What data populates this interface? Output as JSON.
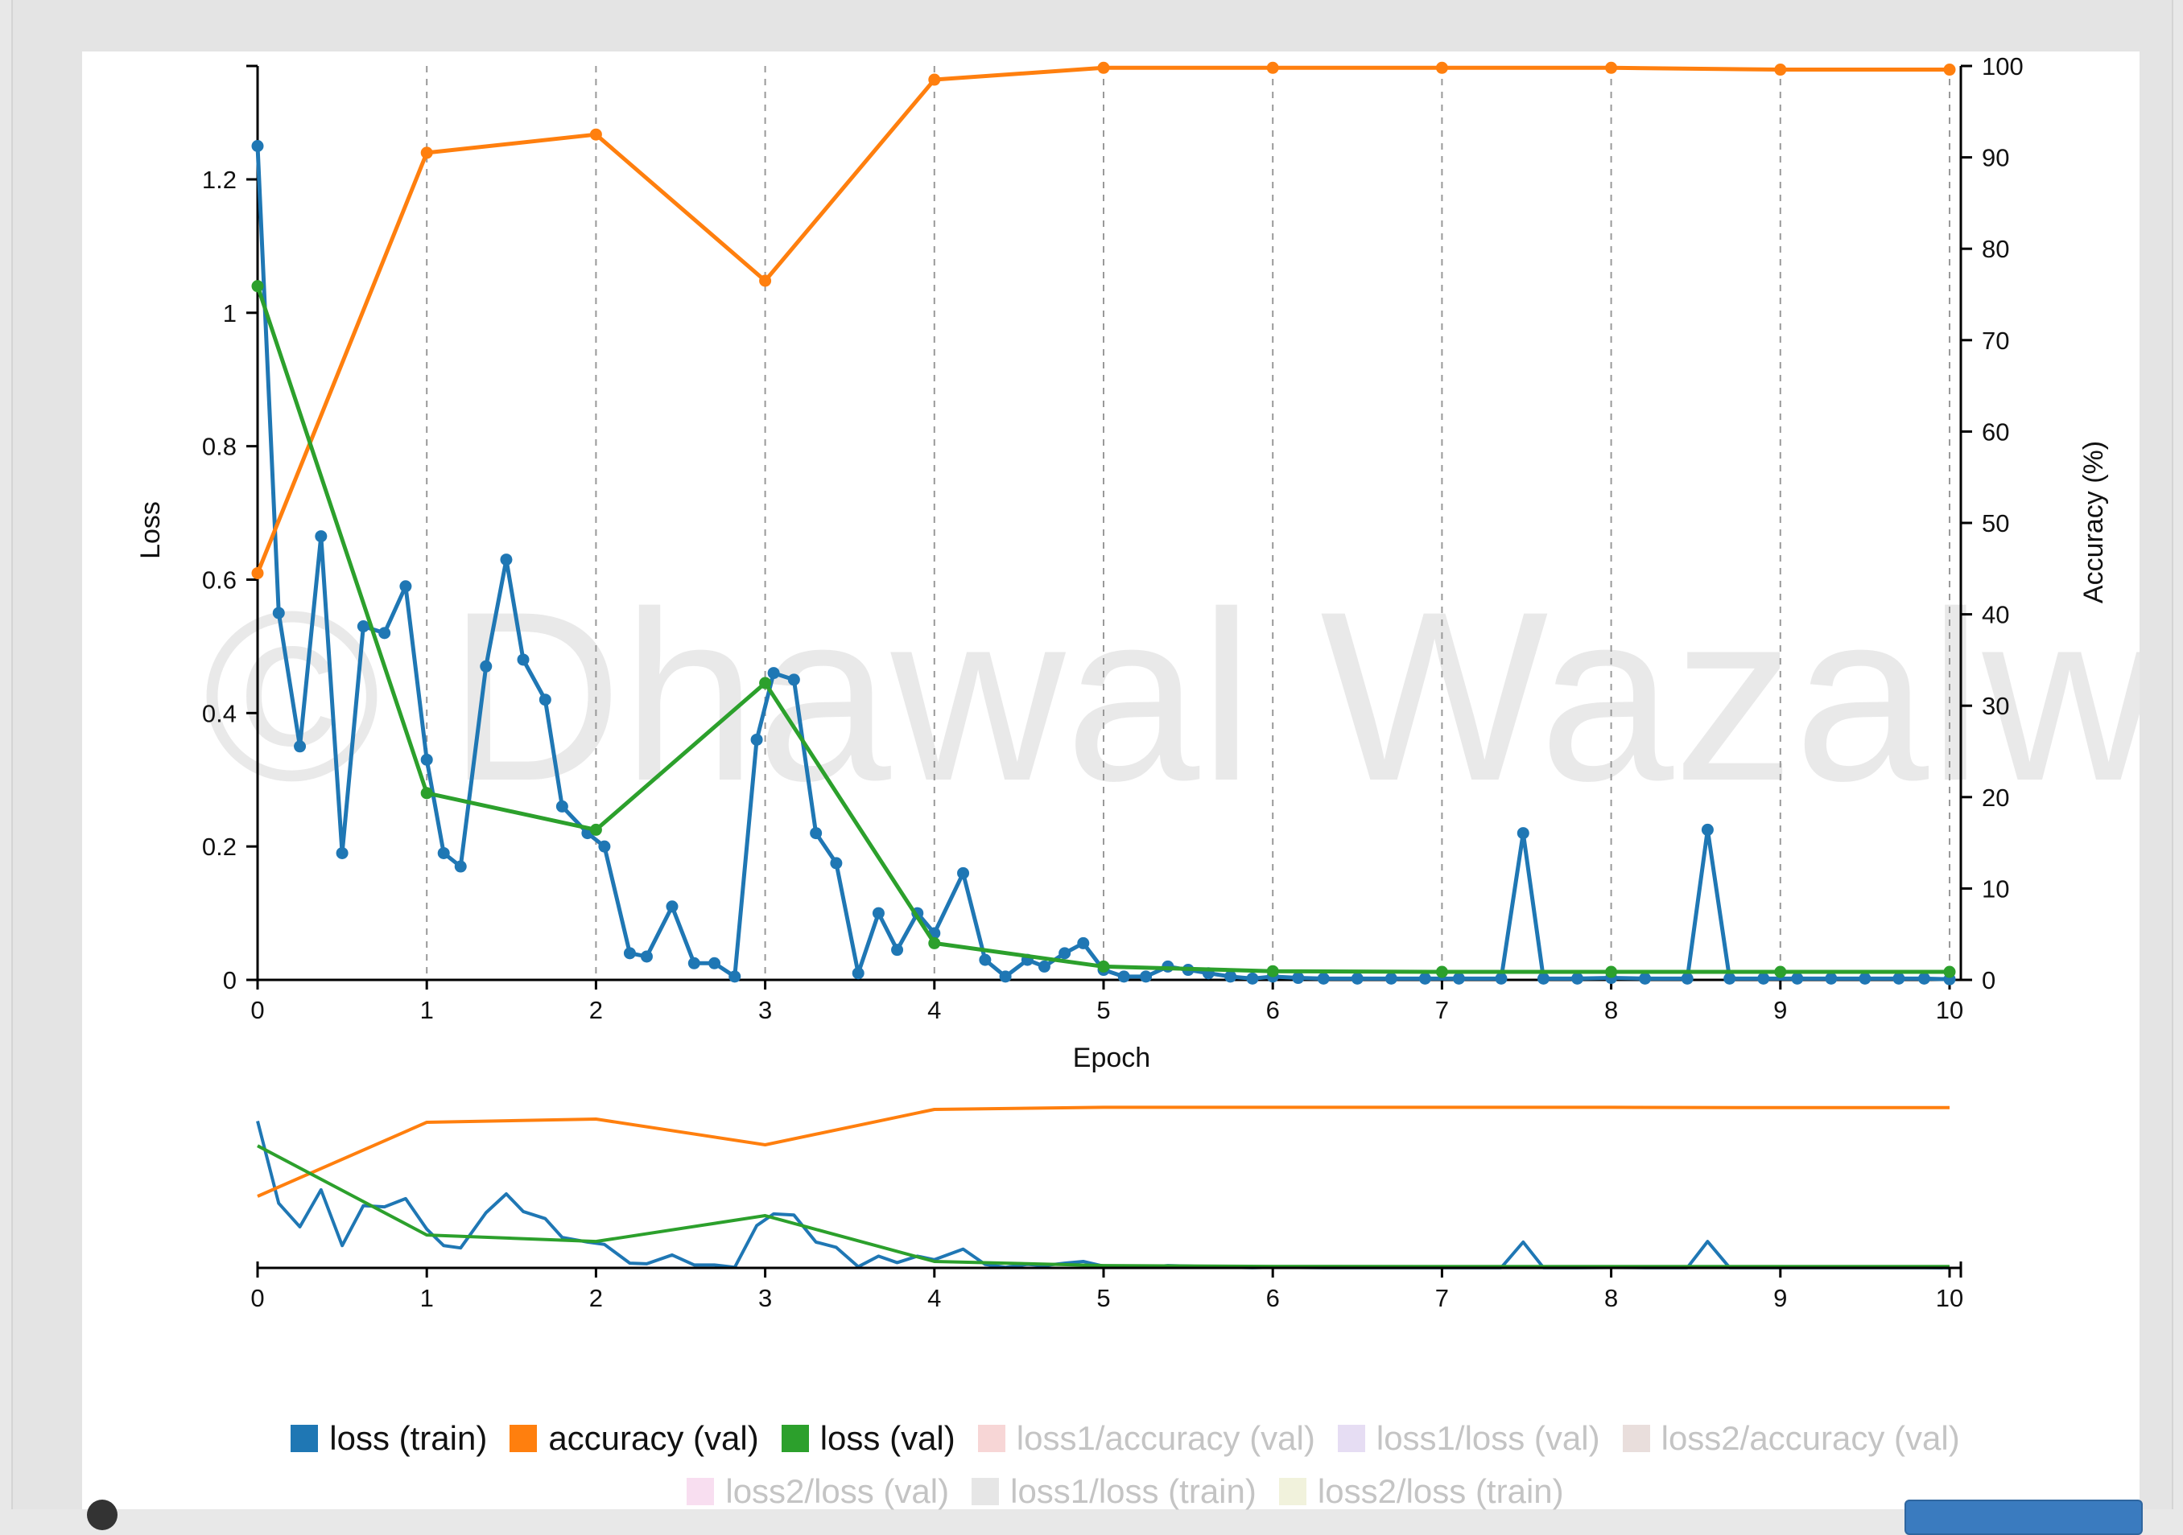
{
  "watermark": "© Dhawal Wazalwar",
  "chart_data": {
    "type": "line",
    "xlabel": "Epoch",
    "ylabel_left": "Loss",
    "ylabel_right": "Accuracy (%)",
    "xlim": [
      0,
      10
    ],
    "ylim_left": [
      0,
      1.37
    ],
    "ylim_right": [
      0,
      100
    ],
    "x_ticks": [
      "0",
      "1",
      "2",
      "3",
      "4",
      "5",
      "6",
      "7",
      "8",
      "9",
      "10"
    ],
    "y_left_ticks": [
      {
        "v": 0,
        "label": "0"
      },
      {
        "v": 0.2,
        "label": "0.2"
      },
      {
        "v": 0.4,
        "label": "0.4"
      },
      {
        "v": 0.6,
        "label": "0.6"
      },
      {
        "v": 0.8,
        "label": "0.8"
      },
      {
        "v": 1,
        "label": "1"
      },
      {
        "v": 1.2,
        "label": "1.2"
      }
    ],
    "y_right_ticks": [
      "0",
      "10",
      "20",
      "30",
      "40",
      "50",
      "60",
      "70",
      "80",
      "90",
      "100"
    ],
    "grid": "vertical dashed at each epoch",
    "series": [
      {
        "name": "loss (train)",
        "color": "#1f77b4",
        "axis": "left",
        "x": [
          0,
          0.125,
          0.25,
          0.375,
          0.5,
          0.625,
          0.75,
          0.875,
          1,
          1.1,
          1.2,
          1.35,
          1.47,
          1.57,
          1.7,
          1.8,
          1.95,
          2.05,
          2.2,
          2.3,
          2.45,
          2.58,
          2.7,
          2.82,
          2.95,
          3.05,
          3.17,
          3.3,
          3.42,
          3.55,
          3.67,
          3.78,
          3.9,
          4.0,
          4.17,
          4.3,
          4.42,
          4.55,
          4.65,
          4.77,
          4.88,
          5.0,
          5.12,
          5.25,
          5.38,
          5.5,
          5.62,
          5.75,
          5.88,
          6.0,
          6.15,
          6.3,
          6.5,
          6.7,
          6.9,
          7.1,
          7.35,
          7.48,
          7.6,
          7.8,
          8.0,
          8.2,
          8.45,
          8.57,
          8.7,
          8.9,
          9.1,
          9.3,
          9.5,
          9.7,
          9.85,
          10
        ],
        "values": [
          1.25,
          0.55,
          0.35,
          0.665,
          0.19,
          0.53,
          0.52,
          0.59,
          0.33,
          0.19,
          0.17,
          0.47,
          0.63,
          0.48,
          0.42,
          0.26,
          0.22,
          0.2,
          0.04,
          0.035,
          0.11,
          0.025,
          0.025,
          0.005,
          0.36,
          0.46,
          0.45,
          0.22,
          0.175,
          0.01,
          0.1,
          0.045,
          0.1,
          0.07,
          0.16,
          0.03,
          0.005,
          0.03,
          0.02,
          0.04,
          0.055,
          0.015,
          0.005,
          0.005,
          0.02,
          0.015,
          0.01,
          0.005,
          0.002,
          0.005,
          0.003,
          0.002,
          0.002,
          0.002,
          0.002,
          0.002,
          0.002,
          0.22,
          0.002,
          0.002,
          0.003,
          0.002,
          0.002,
          0.225,
          0.002,
          0.002,
          0.002,
          0.002,
          0.002,
          0.002,
          0.002,
          0.001
        ]
      },
      {
        "name": "accuracy (val)",
        "color": "#ff7f0e",
        "axis": "right",
        "x": [
          0,
          1,
          2,
          3,
          4,
          5,
          6,
          7,
          8,
          9,
          10
        ],
        "values": [
          44.5,
          90.5,
          92.5,
          76.5,
          98.5,
          99.8,
          99.8,
          99.8,
          99.8,
          99.6,
          99.6
        ]
      },
      {
        "name": "loss (val)",
        "color": "#2ca02c",
        "axis": "left",
        "x": [
          0,
          1,
          2,
          3,
          4,
          5,
          6,
          7,
          8,
          9,
          10
        ],
        "values": [
          1.04,
          0.28,
          0.225,
          0.445,
          0.055,
          0.02,
          0.013,
          0.012,
          0.012,
          0.012,
          0.012
        ]
      }
    ]
  },
  "legend": {
    "row1": [
      {
        "label": "loss (train)",
        "color": "#1f77b4",
        "active": true
      },
      {
        "label": "accuracy (val)",
        "color": "#ff7f0e",
        "active": true
      },
      {
        "label": "loss (val)",
        "color": "#2ca02c",
        "active": true
      },
      {
        "label": "loss1/accuracy (val)",
        "color": "#f7d6d6",
        "active": false
      },
      {
        "label": "loss1/loss (val)",
        "color": "#e6ddf3",
        "active": false
      },
      {
        "label": "loss2/accuracy (val)",
        "color": "#e9dedc",
        "active": false
      }
    ],
    "row2": [
      {
        "label": "loss2/loss (val)",
        "color": "#f8def0",
        "active": false
      },
      {
        "label": "loss1/loss (train)",
        "color": "#e6e6e6",
        "active": false
      },
      {
        "label": "loss2/loss (train)",
        "color": "#f1f2dc",
        "active": false
      }
    ]
  }
}
